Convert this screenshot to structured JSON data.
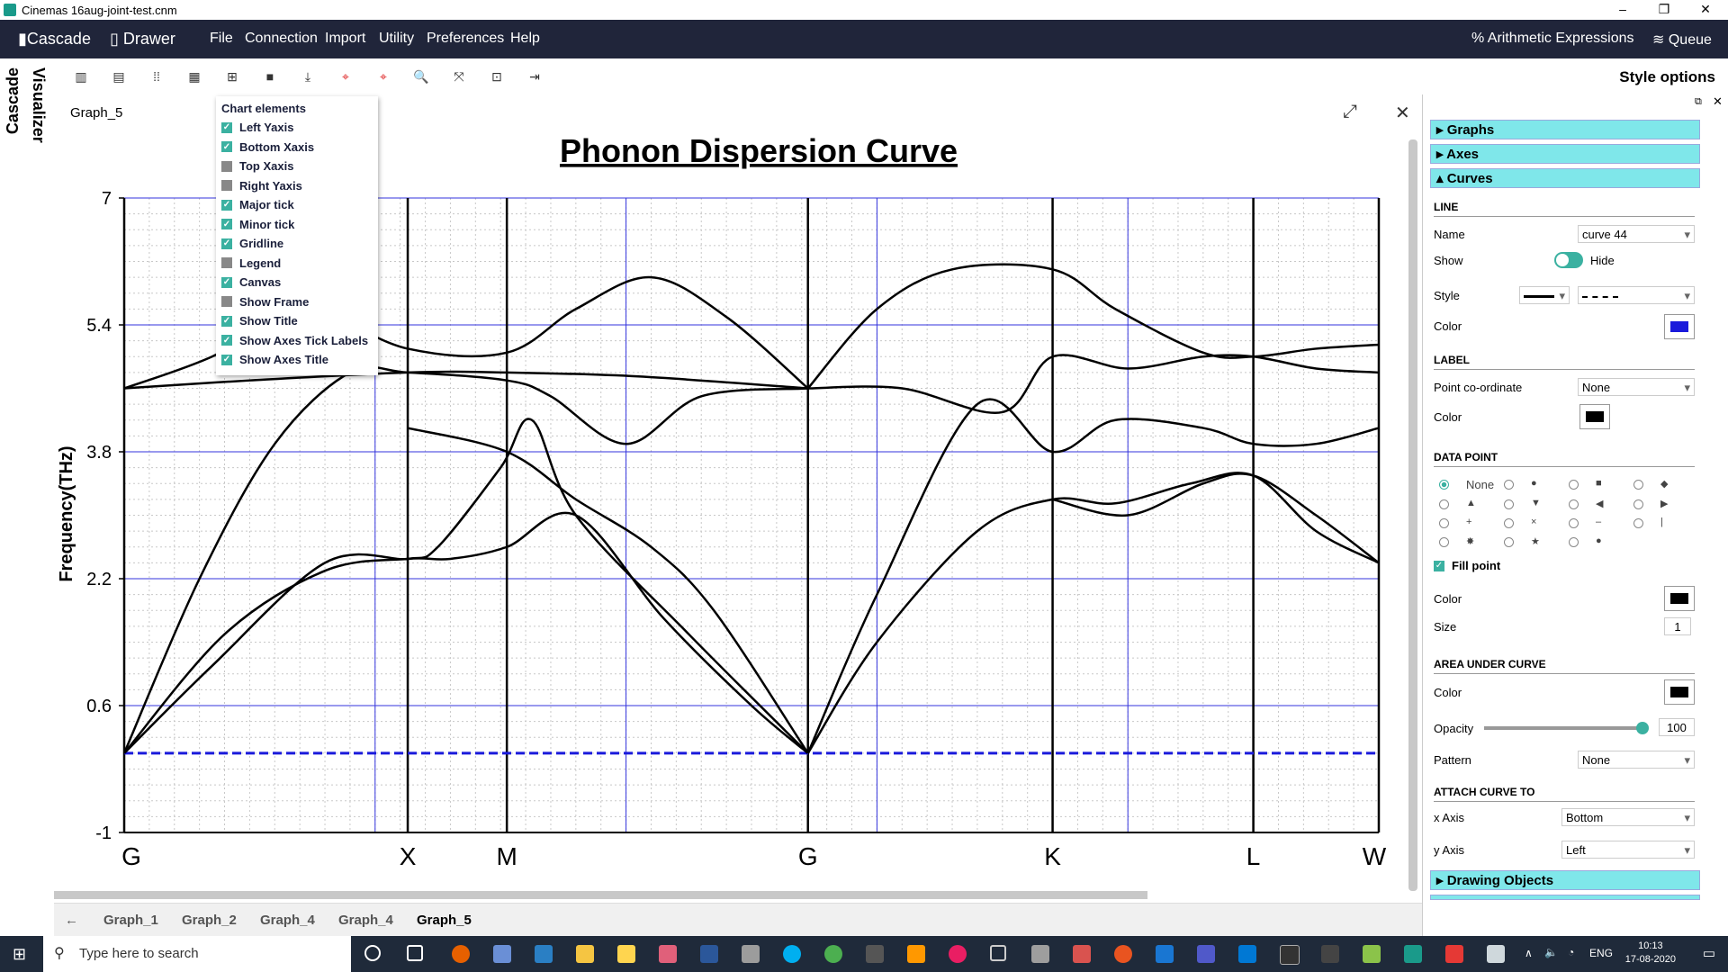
{
  "window": {
    "title": "Cinemas 16aug-joint-test.cnm",
    "min_glyph": "–",
    "max_glyph": "❐",
    "close_glyph": "✕"
  },
  "menubar": {
    "brand1": "Cascade",
    "brand2": "Drawer",
    "items": [
      "File",
      "Connection",
      "Import",
      "Utility",
      "Preferences",
      "Help"
    ],
    "right1": "Arithmetic Expressions",
    "right2": "Queue"
  },
  "sidebar": {
    "tab1": "Cascade",
    "tab2": "Visualizer"
  },
  "toolbar": {
    "style_options": "Style options"
  },
  "graph": {
    "tab_label": "Graph_5",
    "close_glyph": "✕",
    "expand_glyph": "⤢"
  },
  "chart_elements": {
    "heading": "Chart elements",
    "items": [
      {
        "label": "Left Yaxis",
        "checked": true
      },
      {
        "label": "Bottom Xaxis",
        "checked": true
      },
      {
        "label": "Top Xaxis",
        "checked": false
      },
      {
        "label": "Right Yaxis",
        "checked": false
      },
      {
        "label": "Major tick",
        "checked": true
      },
      {
        "label": "Minor tick",
        "checked": true
      },
      {
        "label": "Gridline",
        "checked": true
      },
      {
        "label": "Legend",
        "checked": false
      },
      {
        "label": "Canvas",
        "checked": true
      },
      {
        "label": "Show Frame",
        "checked": false
      },
      {
        "label": "Show Title",
        "checked": true
      },
      {
        "label": "Show Axes Tick Labels",
        "checked": true
      },
      {
        "label": "Show Axes Title",
        "checked": true
      }
    ]
  },
  "bottom_tabs": {
    "scroll_left": "←",
    "scroll_right": "→",
    "tabs": [
      "Graph_1",
      "Graph_2",
      "Graph_4",
      "Graph_4",
      "Graph_5"
    ],
    "active": 4
  },
  "style_panel": {
    "sections": {
      "graphs": "Graphs",
      "axes": "Axes",
      "curves": "Curves",
      "drawing": "Drawing Objects"
    },
    "line": {
      "heading": "LINE",
      "name_label": "Name",
      "name_value": "curve 44",
      "show_label": "Show",
      "hide_label": "Hide",
      "style_label": "Style",
      "color_label": "Color",
      "color": "#1a1adb"
    },
    "label": {
      "heading": "LABEL",
      "point_label": "Point co-ordinate",
      "point_value": "None",
      "color_label": "Color",
      "color": "#000000"
    },
    "data_point": {
      "heading": "DATA POINT",
      "none_label": "None",
      "glyphs": [
        "●",
        "■",
        "◆",
        "▲",
        "▼",
        "◀",
        "▶",
        "+",
        "×",
        "–",
        "|",
        "✸",
        "★",
        "●"
      ],
      "fill_label": "Fill point",
      "color_label": "Color",
      "color": "#000000",
      "size_label": "Size",
      "size_value": "1"
    },
    "area": {
      "heading": "AREA UNDER CURVE",
      "color_label": "Color",
      "color": "#000000",
      "opacity_label": "Opacity",
      "opacity_value": "100",
      "opacity": 1.0,
      "pattern_label": "Pattern",
      "pattern_value": "None"
    },
    "attach": {
      "heading": "ATTACH CURVE TO",
      "x_label": "x Axis",
      "x_value": "Bottom",
      "y_label": "y Axis",
      "y_value": "Left"
    }
  },
  "taskbar": {
    "search_placeholder": "Type here to search",
    "lang": "ENG",
    "time": "10:13",
    "date": "17-08-2020"
  },
  "chart_data": {
    "type": "line",
    "title": "Phonon Dispersion Curve",
    "ylabel": "Frequency(THz)",
    "xlabel": "",
    "ylim": [
      -1,
      7
    ],
    "xlim": [
      0,
      1.0
    ],
    "yticks": [
      "7",
      "5.4",
      "3.8",
      "2.2",
      "0.6",
      "-1"
    ],
    "ytick_values": [
      7,
      5.4,
      3.8,
      2.2,
      0.6,
      -1
    ],
    "high_symmetry_labels": [
      "G",
      "X",
      "M",
      "G",
      "K",
      "L",
      "W"
    ],
    "high_symmetry_positions": [
      0.0,
      0.226,
      0.305,
      0.545,
      0.74,
      0.9,
      1.0
    ],
    "grid": true,
    "legend": "none",
    "series": [
      {
        "values": [
          [
            0,
            0
          ],
          [
            0.08,
            1.5
          ],
          [
            0.16,
            2.3
          ],
          [
            0.226,
            2.45
          ],
          [
            0.26,
            2.45
          ],
          [
            0.305,
            2.6
          ],
          [
            0.36,
            3.0
          ],
          [
            0.43,
            1.7
          ],
          [
            0.5,
            0.6
          ],
          [
            0.545,
            0
          ]
        ]
      },
      {
        "values": [
          [
            0,
            0
          ],
          [
            0.07,
            1.1
          ],
          [
            0.16,
            2.4
          ],
          [
            0.226,
            2.45
          ],
          [
            0.25,
            2.6
          ],
          [
            0.3,
            3.6
          ],
          [
            0.325,
            4.2
          ],
          [
            0.36,
            3.0
          ],
          [
            0.45,
            1.5
          ],
          [
            0.545,
            0
          ]
        ]
      },
      {
        "values": [
          [
            0,
            0
          ],
          [
            0.06,
            2.2
          ],
          [
            0.12,
            3.9
          ],
          [
            0.18,
            4.8
          ],
          [
            0.226,
            4.8
          ],
          [
            0.305,
            4.7
          ],
          [
            0.34,
            4.5
          ],
          [
            0.4,
            3.9
          ],
          [
            0.46,
            4.5
          ],
          [
            0.545,
            4.6
          ]
        ]
      },
      {
        "values": [
          [
            0,
            4.6
          ],
          [
            0.1,
            4.7
          ],
          [
            0.226,
            4.8
          ],
          [
            0.305,
            4.8
          ],
          [
            0.41,
            4.75
          ],
          [
            0.545,
            4.6
          ]
        ]
      },
      {
        "values": [
          [
            0,
            4.6
          ],
          [
            0.07,
            5.0
          ],
          [
            0.14,
            5.6
          ],
          [
            0.226,
            5.1
          ],
          [
            0.305,
            5.05
          ],
          [
            0.36,
            5.6
          ],
          [
            0.42,
            6.0
          ],
          [
            0.48,
            5.5
          ],
          [
            0.545,
            4.6
          ]
        ]
      },
      {
        "values": [
          [
            0.226,
            4.1
          ],
          [
            0.305,
            3.8
          ],
          [
            0.36,
            3.2
          ],
          [
            0.42,
            2.6
          ],
          [
            0.47,
            1.8
          ],
          [
            0.545,
            0
          ]
        ]
      },
      {
        "values": [
          [
            0.545,
            0
          ],
          [
            0.6,
            1.4
          ],
          [
            0.68,
            2.8
          ],
          [
            0.74,
            3.2
          ],
          [
            0.79,
            3.15
          ],
          [
            0.85,
            3.4
          ],
          [
            0.9,
            3.5
          ],
          [
            0.95,
            2.8
          ],
          [
            1.0,
            2.4
          ]
        ]
      },
      {
        "values": [
          [
            0.545,
            0
          ],
          [
            0.6,
            2.0
          ],
          [
            0.68,
            4.4
          ],
          [
            0.74,
            3.8
          ],
          [
            0.79,
            4.2
          ],
          [
            0.86,
            4.1
          ],
          [
            0.9,
            3.9
          ],
          [
            0.95,
            3.9
          ],
          [
            1.0,
            4.1
          ]
        ]
      },
      {
        "values": [
          [
            0.545,
            4.6
          ],
          [
            0.6,
            5.6
          ],
          [
            0.66,
            6.1
          ],
          [
            0.74,
            6.1
          ],
          [
            0.79,
            5.6
          ],
          [
            0.86,
            5.05
          ],
          [
            0.9,
            5.0
          ],
          [
            0.95,
            5.1
          ],
          [
            1.0,
            5.15
          ]
        ]
      },
      {
        "values": [
          [
            0.545,
            4.6
          ],
          [
            0.62,
            4.6
          ],
          [
            0.7,
            4.3
          ],
          [
            0.74,
            5.0
          ],
          [
            0.8,
            4.85
          ],
          [
            0.86,
            5.0
          ],
          [
            0.9,
            5.0
          ],
          [
            0.95,
            4.85
          ],
          [
            1.0,
            4.8
          ]
        ]
      },
      {
        "values": [
          [
            0.74,
            3.2
          ],
          [
            0.8,
            3.0
          ],
          [
            0.86,
            3.4
          ],
          [
            0.9,
            3.5
          ],
          [
            0.95,
            3.0
          ],
          [
            1.0,
            2.4
          ]
        ]
      }
    ],
    "reference_line": {
      "y": 0,
      "color": "#1a1adb",
      "style": "dashed"
    }
  }
}
